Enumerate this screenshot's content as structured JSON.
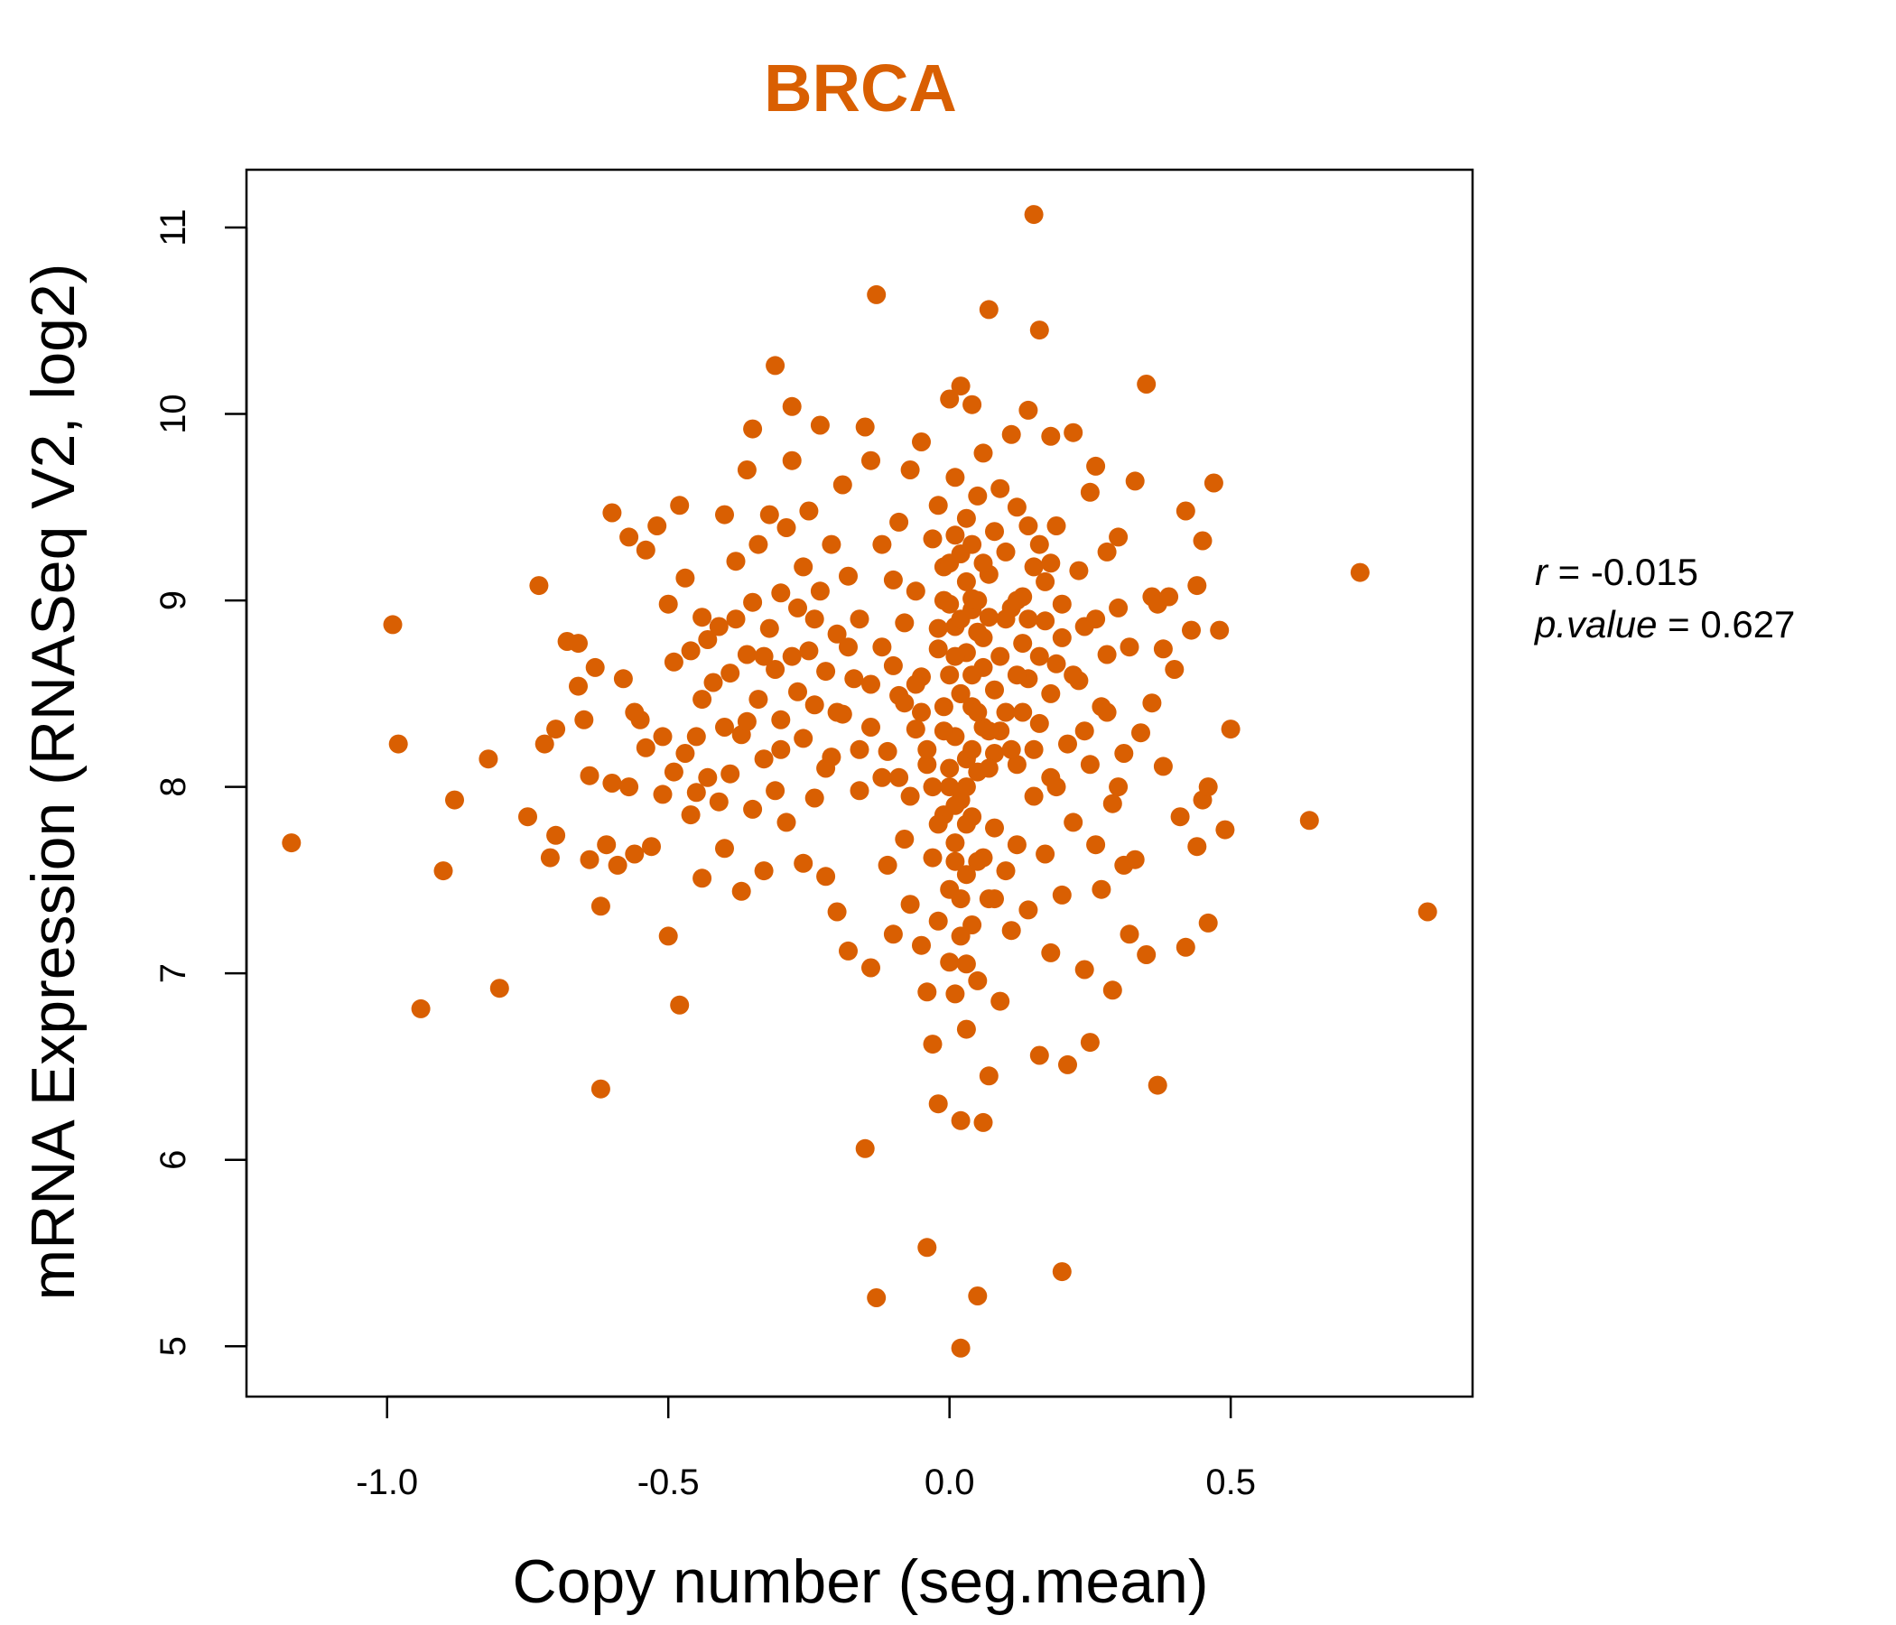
{
  "colors": {
    "points": "#d95f02",
    "title": "#d95f02",
    "axis": "#000000"
  },
  "chart_data": {
    "type": "scatter",
    "title": "BRCA",
    "xlabel": "Copy number (seg.mean)",
    "ylabel": "mRNA Expression (RNASeq V2, log2)",
    "xlim": [
      -1.25,
      0.93
    ],
    "ylim": [
      4.73,
      11.31
    ],
    "x_ticks": [
      -1.0,
      -0.5,
      0.0,
      0.5
    ],
    "x_tick_labels": [
      "-1.0",
      "-0.5",
      "0.0",
      "0.5"
    ],
    "y_ticks": [
      5,
      6,
      7,
      8,
      9,
      10,
      11
    ],
    "y_tick_labels": [
      "5",
      "6",
      "7",
      "8",
      "9",
      "10",
      "11"
    ],
    "grid": false,
    "stats": {
      "r_label": "r",
      "r_value": "-0.015",
      "p_label": "p.value",
      "p_value": "0.627"
    },
    "points": [
      [
        -1.17,
        7.7
      ],
      [
        -0.99,
        8.87
      ],
      [
        -0.98,
        8.23
      ],
      [
        -0.94,
        6.81
      ],
      [
        -0.9,
        7.55
      ],
      [
        -0.88,
        7.93
      ],
      [
        -0.82,
        8.15
      ],
      [
        -0.8,
        6.92
      ],
      [
        -0.75,
        7.84
      ],
      [
        -0.73,
        9.08
      ],
      [
        -0.72,
        8.23
      ],
      [
        -0.71,
        7.62
      ],
      [
        -0.7,
        8.31
      ],
      [
        -0.7,
        7.74
      ],
      [
        -0.68,
        8.78
      ],
      [
        -0.66,
        8.54
      ],
      [
        -0.66,
        8.77
      ],
      [
        -0.65,
        8.36
      ],
      [
        -0.64,
        7.61
      ],
      [
        -0.64,
        8.06
      ],
      [
        -0.63,
        8.64
      ],
      [
        -0.62,
        6.38
      ],
      [
        -0.62,
        7.36
      ],
      [
        -0.61,
        7.69
      ],
      [
        -0.6,
        8.02
      ],
      [
        -0.59,
        7.58
      ],
      [
        -0.6,
        9.47
      ],
      [
        -0.58,
        8.58
      ],
      [
        -0.57,
        8.0
      ],
      [
        -0.57,
        9.34
      ],
      [
        -0.56,
        8.4
      ],
      [
        -0.56,
        7.64
      ],
      [
        -0.55,
        8.36
      ],
      [
        -0.54,
        8.21
      ],
      [
        -0.54,
        9.27
      ],
      [
        -0.53,
        7.68
      ],
      [
        -0.52,
        9.4
      ],
      [
        -0.51,
        7.96
      ],
      [
        -0.51,
        8.27
      ],
      [
        -0.5,
        8.98
      ],
      [
        -0.5,
        7.2
      ],
      [
        -0.49,
        8.67
      ],
      [
        -0.49,
        8.08
      ],
      [
        -0.48,
        9.51
      ],
      [
        -0.48,
        6.83
      ],
      [
        -0.47,
        8.18
      ],
      [
        -0.47,
        9.12
      ],
      [
        -0.46,
        7.85
      ],
      [
        -0.46,
        8.73
      ],
      [
        -0.45,
        8.27
      ],
      [
        -0.45,
        7.97
      ],
      [
        -0.44,
        8.91
      ],
      [
        -0.44,
        8.47
      ],
      [
        -0.44,
        7.51
      ],
      [
        -0.43,
        8.05
      ],
      [
        -0.43,
        8.79
      ],
      [
        -0.42,
        8.56
      ],
      [
        -0.41,
        7.92
      ],
      [
        -0.41,
        8.86
      ],
      [
        -0.4,
        8.32
      ],
      [
        -0.4,
        9.46
      ],
      [
        -0.4,
        7.67
      ],
      [
        -0.39,
        8.61
      ],
      [
        -0.39,
        8.07
      ],
      [
        -0.38,
        8.9
      ],
      [
        -0.38,
        9.21
      ],
      [
        -0.37,
        7.44
      ],
      [
        -0.37,
        8.28
      ],
      [
        -0.36,
        9.7
      ],
      [
        -0.36,
        8.71
      ],
      [
        -0.35,
        7.88
      ],
      [
        -0.35,
        8.99
      ],
      [
        -0.35,
        9.92
      ],
      [
        -0.34,
        8.47
      ],
      [
        -0.34,
        9.3
      ],
      [
        -0.33,
        8.15
      ],
      [
        -0.33,
        7.55
      ],
      [
        -0.32,
        8.85
      ],
      [
        -0.32,
        9.46
      ],
      [
        -0.31,
        8.63
      ],
      [
        -0.31,
        7.98
      ],
      [
        -0.31,
        10.26
      ],
      [
        -0.3,
        9.04
      ],
      [
        -0.3,
        8.36
      ],
      [
        -0.29,
        9.39
      ],
      [
        -0.29,
        7.81
      ],
      [
        -0.28,
        8.7
      ],
      [
        -0.28,
        10.04
      ],
      [
        -0.28,
        9.75
      ],
      [
        -0.27,
        8.51
      ],
      [
        -0.27,
        8.96
      ],
      [
        -0.26,
        7.59
      ],
      [
        -0.26,
        9.18
      ],
      [
        -0.26,
        8.26
      ],
      [
        -0.25,
        8.73
      ],
      [
        -0.25,
        9.48
      ],
      [
        -0.24,
        7.94
      ],
      [
        -0.24,
        8.44
      ],
      [
        -0.23,
        9.94
      ],
      [
        -0.23,
        9.05
      ],
      [
        -0.22,
        8.62
      ],
      [
        -0.22,
        7.52
      ],
      [
        -0.21,
        9.3
      ],
      [
        -0.21,
        8.16
      ],
      [
        -0.2,
        8.82
      ],
      [
        -0.2,
        7.33
      ],
      [
        -0.19,
        9.62
      ],
      [
        -0.19,
        8.39
      ],
      [
        -0.18,
        7.12
      ],
      [
        -0.18,
        9.13
      ],
      [
        -0.17,
        8.58
      ],
      [
        -0.16,
        8.9
      ],
      [
        -0.16,
        7.98
      ],
      [
        -0.15,
        9.93
      ],
      [
        -0.15,
        6.06
      ],
      [
        -0.14,
        9.75
      ],
      [
        -0.14,
        8.32
      ],
      [
        -0.14,
        7.03
      ],
      [
        -0.13,
        10.64
      ],
      [
        -0.13,
        5.26
      ],
      [
        -0.12,
        9.3
      ],
      [
        -0.12,
        8.75
      ],
      [
        -0.11,
        7.58
      ],
      [
        -0.11,
        8.19
      ],
      [
        -0.1,
        9.11
      ],
      [
        -0.1,
        7.21
      ],
      [
        -0.09,
        8.49
      ],
      [
        -0.09,
        9.42
      ],
      [
        -0.08,
        7.72
      ],
      [
        -0.08,
        8.88
      ],
      [
        -0.07,
        9.7
      ],
      [
        -0.07,
        7.37
      ],
      [
        -0.06,
        8.31
      ],
      [
        -0.06,
        9.05
      ],
      [
        -0.05,
        7.15
      ],
      [
        -0.05,
        8.59
      ],
      [
        -0.05,
        9.85
      ],
      [
        -0.04,
        5.53
      ],
      [
        -0.04,
        6.9
      ],
      [
        -0.04,
        8.12
      ],
      [
        -0.03,
        9.33
      ],
      [
        -0.03,
        7.62
      ],
      [
        -0.03,
        6.62
      ],
      [
        -0.02,
        8.74
      ],
      [
        -0.02,
        9.51
      ],
      [
        -0.02,
        7.28
      ],
      [
        -0.02,
        6.3
      ],
      [
        -0.01,
        8.43
      ],
      [
        -0.01,
        7.85
      ],
      [
        -0.01,
        9.18
      ],
      [
        0.0,
        8.6
      ],
      [
        0.0,
        7.45
      ],
      [
        0.0,
        10.08
      ],
      [
        0.0,
        8.98
      ],
      [
        0.0,
        7.06
      ],
      [
        0.01,
        8.27
      ],
      [
        0.01,
        9.66
      ],
      [
        0.01,
        7.7
      ],
      [
        0.01,
        8.86
      ],
      [
        0.01,
        6.89
      ],
      [
        0.02,
        4.99
      ],
      [
        0.02,
        8.5
      ],
      [
        0.02,
        9.25
      ],
      [
        0.02,
        7.93
      ],
      [
        0.02,
        10.15
      ],
      [
        0.02,
        6.21
      ],
      [
        0.03,
        8.72
      ],
      [
        0.03,
        7.53
      ],
      [
        0.03,
        9.44
      ],
      [
        0.03,
        8.15
      ],
      [
        0.03,
        6.7
      ],
      [
        0.04,
        9.01
      ],
      [
        0.04,
        7.84
      ],
      [
        0.04,
        8.43
      ],
      [
        0.04,
        10.05
      ],
      [
        0.04,
        7.26
      ],
      [
        0.05,
        8.83
      ],
      [
        0.05,
        9.56
      ],
      [
        0.05,
        5.27
      ],
      [
        0.05,
        8.08
      ],
      [
        0.05,
        6.96
      ],
      [
        0.06,
        8.64
      ],
      [
        0.06,
        9.79
      ],
      [
        0.06,
        7.62
      ],
      [
        0.06,
        6.2
      ],
      [
        0.06,
        8.32
      ],
      [
        0.07,
        10.56
      ],
      [
        0.07,
        9.14
      ],
      [
        0.07,
        7.4
      ],
      [
        0.07,
        8.91
      ],
      [
        0.07,
        6.45
      ],
      [
        0.08,
        8.52
      ],
      [
        0.08,
        9.37
      ],
      [
        0.08,
        7.78
      ],
      [
        0.08,
        8.18
      ],
      [
        0.09,
        9.6
      ],
      [
        0.09,
        8.7
      ],
      [
        0.09,
        6.85
      ],
      [
        0.1,
        7.55
      ],
      [
        0.1,
        9.26
      ],
      [
        0.1,
        8.4
      ],
      [
        0.11,
        8.96
      ],
      [
        0.11,
        7.23
      ],
      [
        0.11,
        9.89
      ],
      [
        0.12,
        8.12
      ],
      [
        0.12,
        9.5
      ],
      [
        0.12,
        7.69
      ],
      [
        0.13,
        8.77
      ],
      [
        0.13,
        9.02
      ],
      [
        0.14,
        10.02
      ],
      [
        0.14,
        7.34
      ],
      [
        0.14,
        8.58
      ],
      [
        0.15,
        11.07
      ],
      [
        0.15,
        9.18
      ],
      [
        0.15,
        7.95
      ],
      [
        0.16,
        10.45
      ],
      [
        0.16,
        8.34
      ],
      [
        0.16,
        6.56
      ],
      [
        0.17,
        8.89
      ],
      [
        0.17,
        7.64
      ],
      [
        0.18,
        9.88
      ],
      [
        0.18,
        8.05
      ],
      [
        0.18,
        7.11
      ],
      [
        0.19,
        9.4
      ],
      [
        0.19,
        8.66
      ],
      [
        0.2,
        7.42
      ],
      [
        0.2,
        5.4
      ],
      [
        0.2,
        8.98
      ],
      [
        0.21,
        6.51
      ],
      [
        0.21,
        8.23
      ],
      [
        0.22,
        9.9
      ],
      [
        0.22,
        7.81
      ],
      [
        0.23,
        8.57
      ],
      [
        0.23,
        9.16
      ],
      [
        0.24,
        7.02
      ],
      [
        0.24,
        8.86
      ],
      [
        0.25,
        9.58
      ],
      [
        0.25,
        8.12
      ],
      [
        0.25,
        6.63
      ],
      [
        0.26,
        7.69
      ],
      [
        0.26,
        9.72
      ],
      [
        0.27,
        8.43
      ],
      [
        0.27,
        7.45
      ],
      [
        0.28,
        9.26
      ],
      [
        0.28,
        8.71
      ],
      [
        0.29,
        7.91
      ],
      [
        0.29,
        6.91
      ],
      [
        0.3,
        8.96
      ],
      [
        0.3,
        9.34
      ],
      [
        0.31,
        7.58
      ],
      [
        0.31,
        8.18
      ],
      [
        0.32,
        7.21
      ],
      [
        0.32,
        8.75
      ],
      [
        0.33,
        9.64
      ],
      [
        0.33,
        7.61
      ],
      [
        0.34,
        8.29
      ],
      [
        0.35,
        10.16
      ],
      [
        0.35,
        7.1
      ],
      [
        0.36,
        8.45
      ],
      [
        0.36,
        9.02
      ],
      [
        0.37,
        6.4
      ],
      [
        0.37,
        8.98
      ],
      [
        0.38,
        8.74
      ],
      [
        0.38,
        8.11
      ],
      [
        0.39,
        9.02
      ],
      [
        0.4,
        8.63
      ],
      [
        0.41,
        7.84
      ],
      [
        0.42,
        9.48
      ],
      [
        0.42,
        7.14
      ],
      [
        0.43,
        8.84
      ],
      [
        0.44,
        7.68
      ],
      [
        0.44,
        9.08
      ],
      [
        0.45,
        7.93
      ],
      [
        0.45,
        9.32
      ],
      [
        0.46,
        7.27
      ],
      [
        0.46,
        8.0
      ],
      [
        0.47,
        9.63
      ],
      [
        0.48,
        8.84
      ],
      [
        0.49,
        7.77
      ],
      [
        0.5,
        8.31
      ],
      [
        0.64,
        7.82
      ],
      [
        0.73,
        9.15
      ],
      [
        0.85,
        7.33
      ],
      [
        -0.05,
        8.4
      ],
      [
        -0.04,
        8.2
      ],
      [
        -0.03,
        8.0
      ],
      [
        -0.02,
        7.8
      ],
      [
        -0.01,
        8.3
      ],
      [
        0.0,
        8.1
      ],
      [
        0.01,
        7.9
      ],
      [
        0.02,
        8.5
      ],
      [
        0.03,
        8.0
      ],
      [
        0.04,
        8.2
      ],
      [
        0.05,
        7.6
      ],
      [
        0.06,
        8.8
      ],
      [
        0.07,
        8.1
      ],
      [
        0.08,
        7.4
      ],
      [
        0.09,
        8.3
      ],
      [
        0.1,
        8.9
      ],
      [
        0.11,
        8.2
      ],
      [
        0.12,
        8.6
      ],
      [
        0.13,
        8.4
      ],
      [
        0.14,
        8.9
      ],
      [
        0.15,
        8.2
      ],
      [
        0.16,
        8.7
      ],
      [
        0.17,
        9.1
      ],
      [
        0.18,
        8.5
      ],
      [
        0.19,
        8.0
      ],
      [
        -0.1,
        8.65
      ],
      [
        -0.09,
        8.05
      ],
      [
        -0.08,
        8.45
      ],
      [
        -0.07,
        7.95
      ],
      [
        -0.06,
        8.55
      ],
      [
        0.01,
        8.7
      ],
      [
        0.02,
        8.9
      ],
      [
        0.03,
        9.1
      ],
      [
        0.04,
        8.6
      ],
      [
        0.05,
        8.4
      ],
      [
        0.0,
        8.0
      ],
      [
        0.01,
        7.6
      ],
      [
        0.02,
        7.4
      ],
      [
        0.03,
        7.8
      ],
      [
        0.04,
        9.3
      ],
      [
        -0.02,
        8.85
      ],
      [
        -0.01,
        9.0
      ],
      [
        0.0,
        9.2
      ],
      [
        0.01,
        9.35
      ],
      [
        0.02,
        7.2
      ],
      [
        0.03,
        7.05
      ],
      [
        0.04,
        8.95
      ],
      [
        0.05,
        9.0
      ],
      [
        0.06,
        9.2
      ],
      [
        0.07,
        8.3
      ],
      [
        -0.2,
        8.4
      ],
      [
        -0.18,
        8.75
      ],
      [
        -0.16,
        8.2
      ],
      [
        -0.14,
        8.55
      ],
      [
        -0.12,
        8.05
      ],
      [
        -0.24,
        8.9
      ],
      [
        -0.22,
        8.1
      ],
      [
        -0.3,
        8.2
      ],
      [
        -0.33,
        8.7
      ],
      [
        -0.36,
        8.35
      ],
      [
        0.22,
        8.6
      ],
      [
        0.24,
        8.3
      ],
      [
        0.26,
        8.9
      ],
      [
        0.28,
        8.4
      ],
      [
        0.3,
        8.0
      ],
      [
        0.2,
        8.8
      ],
      [
        0.18,
        9.2
      ],
      [
        0.16,
        9.3
      ],
      [
        0.14,
        9.4
      ],
      [
        0.12,
        9.0
      ]
    ]
  }
}
